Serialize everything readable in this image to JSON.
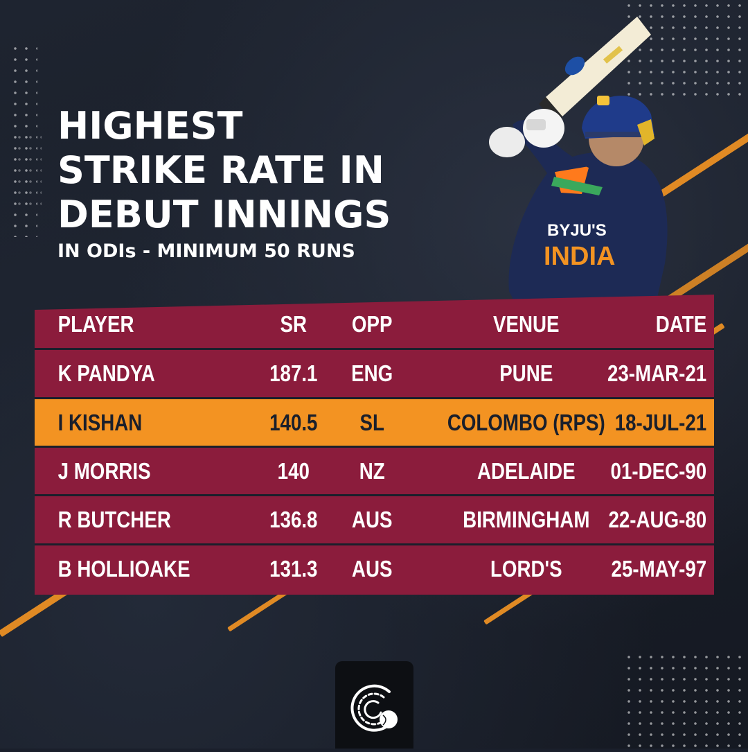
{
  "title_lines": [
    "HIGHEST",
    "STRIKE RATE IN",
    "DEBUT INNINGS"
  ],
  "subtitle": "IN ODIs - MINIMUM 50 RUNS",
  "colors": {
    "background": "#1a1f2b",
    "table_row": "#8b1c3c",
    "highlight_row": "#f39322",
    "accent_stripe": "#e08a24",
    "text": "#ffffff"
  },
  "table": {
    "headers": {
      "player": "PLAYER",
      "sr": "SR",
      "opp": "OPP",
      "venue": "VENUE",
      "date": "DATE"
    },
    "rows": [
      {
        "player": "K PANDYA",
        "sr": "187.1",
        "opp": "ENG",
        "venue": "PUNE",
        "date": "23-MAR-21"
      },
      {
        "player": "I KISHAN",
        "sr": "140.5",
        "opp": "SL",
        "venue": "COLOMBO (RPS)",
        "date": "18-JUL-21"
      },
      {
        "player": "J MORRIS",
        "sr": "140",
        "opp": "NZ",
        "venue": "ADELAIDE",
        "date": "01-DEC-90"
      },
      {
        "player": "R BUTCHER",
        "sr": "136.8",
        "opp": "AUS",
        "venue": "BIRMINGHAM",
        "date": "22-AUG-80"
      },
      {
        "player": "B HOLLIOAKE",
        "sr": "131.3",
        "opp": "AUS",
        "venue": "LORD'S",
        "date": "25-MAY-97"
      }
    ],
    "highlighted_row": "I KISHAN"
  },
  "jersey": {
    "sponsor": "BYJU'S",
    "team": "INDIA"
  },
  "icons": {
    "logo": "cricket-ball-logo-icon",
    "player_image": "batsman-photo"
  }
}
